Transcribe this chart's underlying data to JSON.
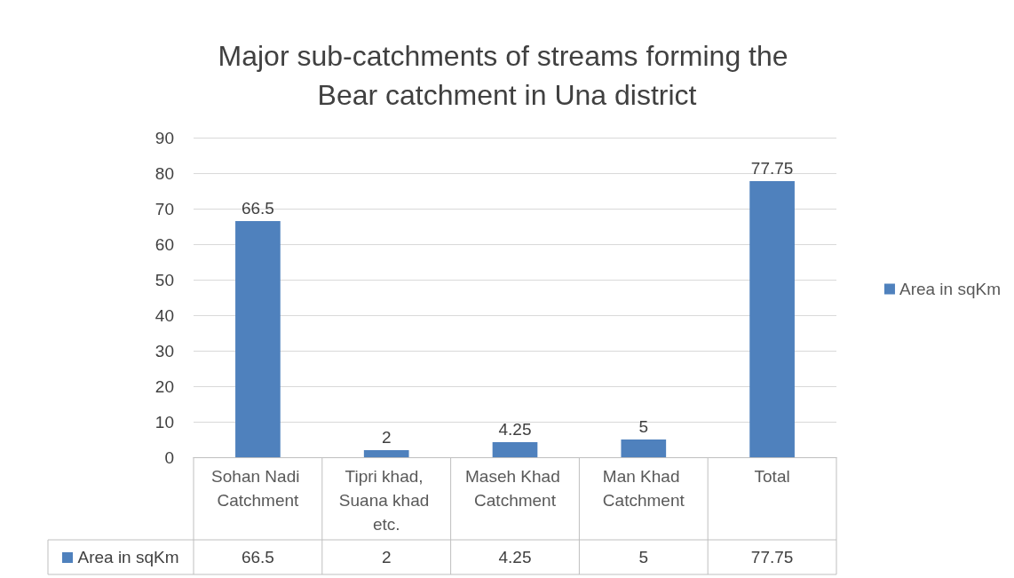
{
  "chart_data": {
    "type": "bar",
    "title": "Major sub-catchments of streams forming the Bear catchment in Una district",
    "categories": [
      "Sohan Nadi Catchment",
      "Tipri khad, Suana khad etc.",
      "Maseh Khad Catchment",
      "Man Khad Catchment",
      "Total"
    ],
    "series": [
      {
        "name": "Area in sqKm",
        "color": "#4f81bd",
        "values": [
          66.5,
          2,
          4.25,
          5,
          77.75
        ],
        "value_labels": [
          "66.5",
          "2",
          "4.25",
          "5",
          "77.75"
        ]
      }
    ],
    "ylim": [
      0,
      90
    ],
    "yticks": [
      0,
      10,
      20,
      30,
      40,
      50,
      60,
      70,
      80,
      90
    ],
    "grid": "y",
    "legend": "right",
    "data_labels": true
  }
}
